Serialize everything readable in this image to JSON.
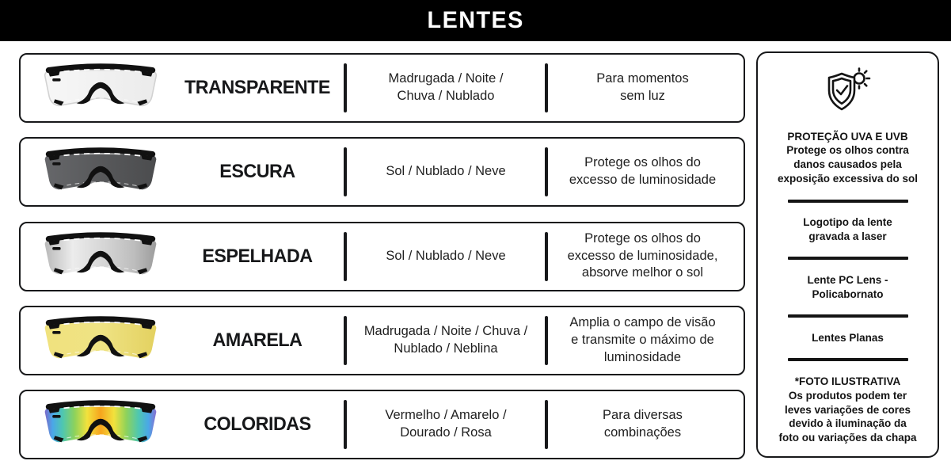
{
  "header": {
    "title": "LENTES"
  },
  "colors": {
    "header_bg": "#000000",
    "box_border": "#17181a",
    "text": "#1f1f1f",
    "frame_black": "#111111"
  },
  "rows": [
    {
      "name": "TRANSPARENTE",
      "conditions_lines": [
        "Madrugada / Noite /",
        "Chuva / Nublado"
      ],
      "description_lines": [
        "Para momentos",
        "sem luz"
      ],
      "lens": {
        "label": "transparent-lens",
        "stroke": "#d2d2d2",
        "stops": [
          [
            "0",
            "#f7f7f7"
          ],
          [
            "0.5",
            "#f1f1f1"
          ],
          [
            "1",
            "#ebebeb"
          ]
        ]
      }
    },
    {
      "name": "ESCURA",
      "conditions_lines": [
        "Sol / Nublado / Neve"
      ],
      "description_lines": [
        "Protege os olhos do",
        "excesso de luminosidade"
      ],
      "lens": {
        "label": "dark-lens",
        "stroke": "",
        "stops": [
          [
            "0",
            "#66676a"
          ],
          [
            "0.5",
            "#58595b"
          ],
          [
            "1",
            "#4b4c4e"
          ]
        ]
      }
    },
    {
      "name": "ESPELHADA",
      "conditions_lines": [
        "Sol / Nublado / Neve"
      ],
      "description_lines": [
        "Protege os olhos do",
        "excesso de luminosidade,",
        "absorve melhor o sol"
      ],
      "lens": {
        "label": "mirrored-lens",
        "stroke": "",
        "stops": [
          [
            "0",
            "#b9b9b9"
          ],
          [
            "0.25",
            "#ececec"
          ],
          [
            "0.55",
            "#d4d4d4"
          ],
          [
            "0.8",
            "#bdbdbd"
          ],
          [
            "1",
            "#9c9c9c"
          ]
        ]
      }
    },
    {
      "name": "AMARELA",
      "conditions_lines": [
        "Madrugada / Noite / Chuva /",
        "Nublado / Neblina"
      ],
      "description_lines": [
        "Amplia o campo de visão",
        "e transmite o máximo de",
        "luminosidade"
      ],
      "lens": {
        "label": "yellow-lens",
        "stroke": "",
        "stops": [
          [
            "0",
            "#f0e27e"
          ],
          [
            "0.5",
            "#efe384"
          ],
          [
            "1",
            "#e3d160"
          ]
        ]
      }
    },
    {
      "name": "COLORIDAS",
      "conditions_lines": [
        "Vermelho / Amarelo /",
        "Dourado / Rosa"
      ],
      "description_lines": [
        "Para diversas",
        "combinações"
      ],
      "lens": {
        "label": "rainbow-lens",
        "stroke": "",
        "stops": [
          [
            "0",
            "#7b68c8"
          ],
          [
            "0.07",
            "#4aa7e8"
          ],
          [
            "0.16",
            "#4fc7b0"
          ],
          [
            "0.27",
            "#8fd25a"
          ],
          [
            "0.38",
            "#f2e23d"
          ],
          [
            "0.5",
            "#f6a41d"
          ],
          [
            "0.62",
            "#f2e23d"
          ],
          [
            "0.73",
            "#8fd25a"
          ],
          [
            "0.84",
            "#4fc7b0"
          ],
          [
            "0.93",
            "#4aa7e8"
          ],
          [
            "1",
            "#8a6fd0"
          ]
        ]
      }
    }
  ],
  "sidebar": {
    "icon": "uv-shield-sun-icon",
    "sections": [
      {
        "heading_lines": [
          "PROTEÇÃO UVA E UVB"
        ],
        "body_lines": [
          "Protege os olhos contra",
          "danos causados pela",
          "exposição excessiva do sol"
        ]
      },
      {
        "heading_lines": [
          "Logotipo da lente",
          "gravada a laser"
        ],
        "body_lines": []
      },
      {
        "heading_lines": [
          "Lente PC Lens -",
          "Policabornato"
        ],
        "body_lines": []
      },
      {
        "heading_lines": [
          "Lentes Planas"
        ],
        "body_lines": []
      },
      {
        "heading_lines": [
          "*FOTO ILUSTRATIVA"
        ],
        "body_lines": [
          "Os produtos podem ter",
          "leves variações de cores",
          "devido à iluminação da",
          "foto ou variações da chapa"
        ]
      }
    ]
  }
}
